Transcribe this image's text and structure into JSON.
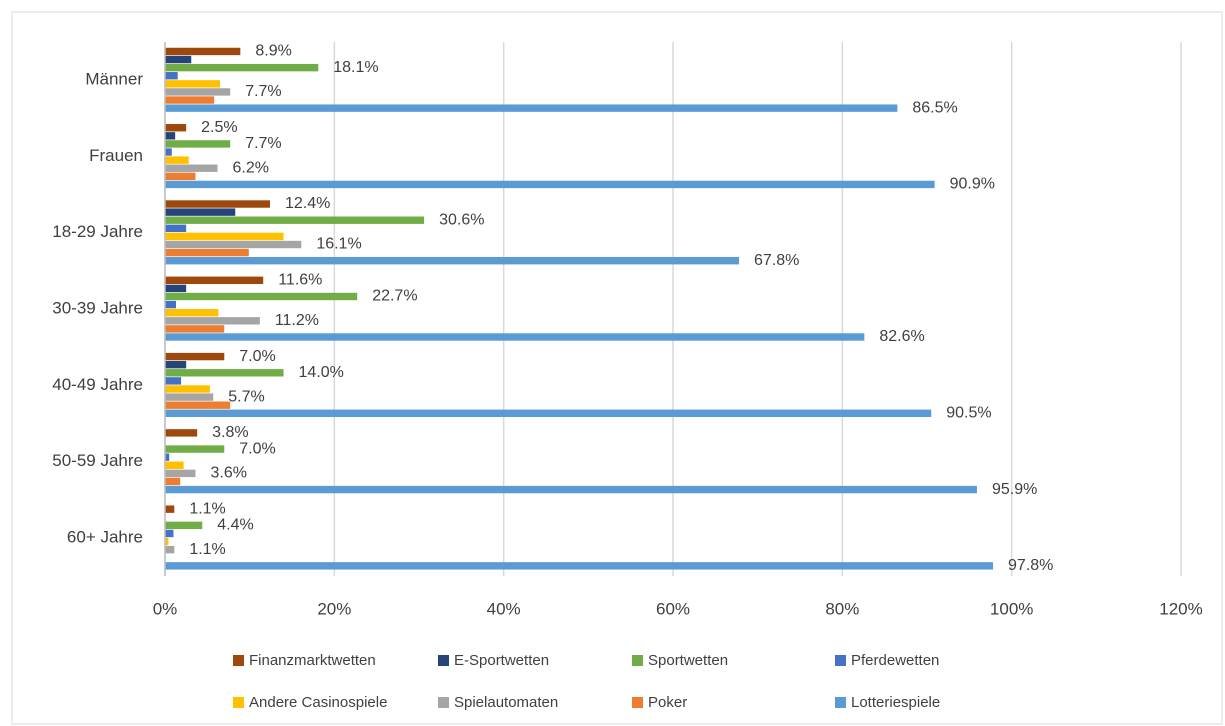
{
  "chart_data": {
    "type": "bar",
    "orientation": "horizontal",
    "categories": [
      "Männer",
      "Frauen",
      "18-29 Jahre",
      "30-39 Jahre",
      "40-49 Jahre",
      "50-59 Jahre",
      "60+ Jahre"
    ],
    "series": [
      {
        "name": "Finanzmarktwetten",
        "color": "#9e480e",
        "values": [
          8.9,
          2.5,
          12.4,
          11.6,
          7.0,
          3.8,
          1.1
        ],
        "value_labels": [
          "8.9%",
          "2.5%",
          "12.4%",
          "11.6%",
          "7.0%",
          "3.8%",
          "1.1%"
        ]
      },
      {
        "name": "E-Sportwetten",
        "color": "#264478",
        "values": [
          3.1,
          1.2,
          8.3,
          2.5,
          2.5,
          0,
          0
        ]
      },
      {
        "name": "Sportwetten",
        "color": "#70ad47",
        "values": [
          18.1,
          7.7,
          30.6,
          22.7,
          14.0,
          7.0,
          4.4
        ],
        "value_labels": [
          "18.1%",
          "7.7%",
          "30.6%",
          "22.7%",
          "14.0%",
          "7.0%",
          "4.4%"
        ]
      },
      {
        "name": "Pferdewetten",
        "color": "#4472c4",
        "values": [
          1.5,
          0.8,
          2.5,
          1.3,
          1.9,
          0.5,
          1.0
        ]
      },
      {
        "name": "Andere Casinospiele",
        "color": "#ffc000",
        "values": [
          6.5,
          2.8,
          14.0,
          6.3,
          5.3,
          2.2,
          0.4
        ]
      },
      {
        "name": "Spielautomaten",
        "color": "#a5a5a5",
        "values": [
          7.7,
          6.2,
          16.1,
          11.2,
          5.7,
          3.6,
          1.1
        ],
        "value_labels": [
          "7.7%",
          "6.2%",
          "16.1%",
          "11.2%",
          "5.7%",
          "3.6%",
          "1.1%"
        ]
      },
      {
        "name": "Poker",
        "color": "#ed7d31",
        "values": [
          5.8,
          3.6,
          9.9,
          7.0,
          7.7,
          1.8,
          0
        ]
      },
      {
        "name": "Lotteriespiele",
        "color": "#5b9bd5",
        "values": [
          86.5,
          90.9,
          67.8,
          82.6,
          90.5,
          95.9,
          97.8
        ],
        "value_labels": [
          "86.5%",
          "90.9%",
          "67.8%",
          "82.6%",
          "90.5%",
          "95.9%",
          "97.8%"
        ]
      }
    ],
    "xlim": [
      0,
      120
    ],
    "xticks": [
      {
        "value": 0,
        "label": "0%"
      },
      {
        "value": 20,
        "label": "20%"
      },
      {
        "value": 40,
        "label": "40%"
      },
      {
        "value": 60,
        "label": "60%"
      },
      {
        "value": 80,
        "label": "80%"
      },
      {
        "value": 100,
        "label": "100%"
      },
      {
        "value": 120,
        "label": "120%"
      }
    ],
    "grid": true,
    "legend": "bottom"
  }
}
